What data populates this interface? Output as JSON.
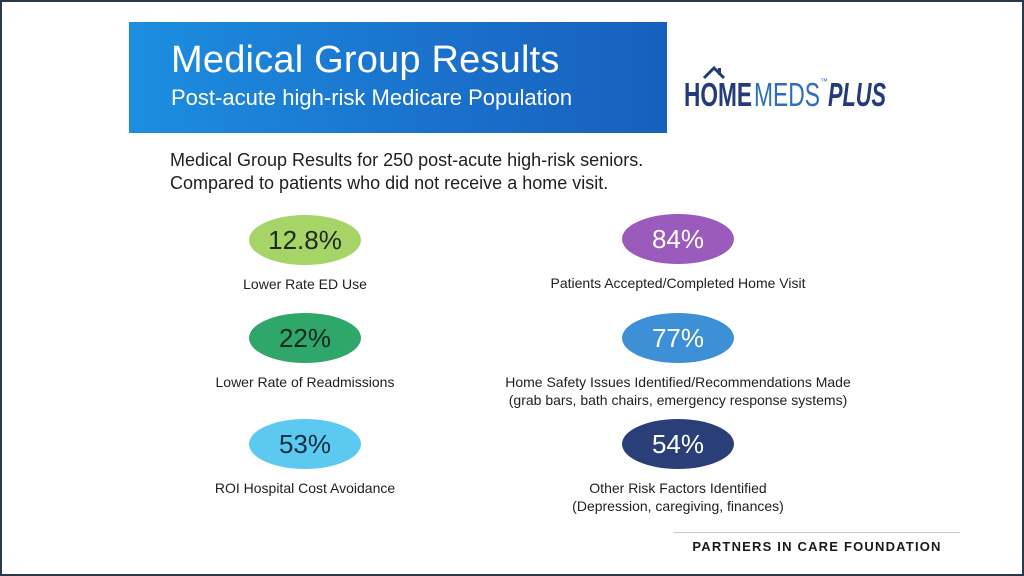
{
  "banner": {
    "title": "Medical Group Results",
    "subtitle": "Post-acute high-risk Medicare Population",
    "color": "#1a78d0"
  },
  "logo": {
    "text_home": "HOME",
    "text_meds": "MEDS",
    "text_plus": "PLUS",
    "trademark": "™",
    "color_primary": "#253a7c",
    "color_secondary": "#2f6dbf"
  },
  "intro": {
    "line1": "Medical Group Results for 250 post-acute high-risk seniors.",
    "line2": "Compared to patients who did not receive a home visit."
  },
  "stats_left": [
    {
      "value": "12.8%",
      "label_line1": "Lower Rate ED Use",
      "label_line2": "",
      "color": "#a6d467",
      "text_color": "#1f2a1f"
    },
    {
      "value": "22%",
      "label_line1": "Lower Rate of Readmissions",
      "label_line2": "",
      "color": "#2fa66a",
      "text_color": "#152a1d"
    },
    {
      "value": "53%",
      "label_line1": "ROI Hospital Cost Avoidance",
      "label_line2": "",
      "color": "#5ccaf0",
      "text_color": "#10303f"
    }
  ],
  "stats_right": [
    {
      "value": "84%",
      "label_line1": "Patients Accepted/Completed Home Visit",
      "label_line2": "",
      "color": "#9b5bbd",
      "text_color": "#ffffff"
    },
    {
      "value": "77%",
      "label_line1": "Home Safety Issues Identified/Recommendations Made",
      "label_line2": "(grab bars, bath chairs, emergency response systems)",
      "color": "#3d8fd6",
      "text_color": "#ffffff"
    },
    {
      "value": "54%",
      "label_line1": "Other Risk Factors Identified",
      "label_line2": "(Depression, caregiving, finances)",
      "color": "#2a3f78",
      "text_color": "#ffffff"
    }
  ],
  "footer": {
    "text": "PARTNERS IN CARE FOUNDATION"
  }
}
